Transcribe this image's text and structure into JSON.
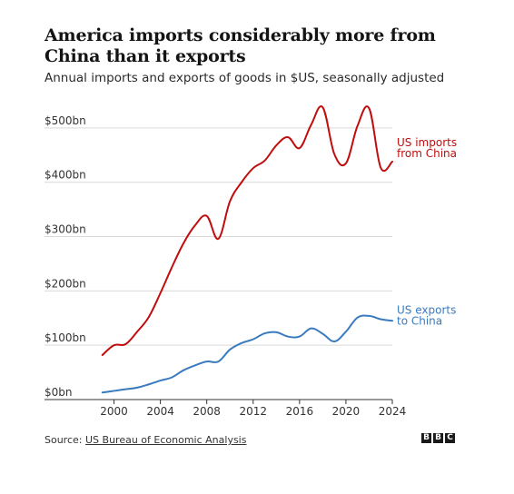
{
  "title": "America imports considerably more from China than it exports",
  "subtitle": "Annual imports and exports of goods in $US, seasonally adjusted",
  "source": {
    "label": "Source:",
    "text": "US Bureau of Economic Analysis"
  },
  "logo": [
    "B",
    "B",
    "C"
  ],
  "colors": {
    "imports": "#c00d0d",
    "exports": "#3a7bbf",
    "grid": "#d9d9d9",
    "axis": "#333333"
  },
  "chart_data": {
    "type": "line",
    "xlim": [
      1998,
      2024
    ],
    "ylim": [
      0,
      540
    ],
    "y_ticks": [
      {
        "value": 0,
        "label": "$0bn"
      },
      {
        "value": 100,
        "label": "$100bn"
      },
      {
        "value": 200,
        "label": "$200bn"
      },
      {
        "value": 300,
        "label": "$300bn"
      },
      {
        "value": 400,
        "label": "$400bn"
      },
      {
        "value": 500,
        "label": "$500bn"
      }
    ],
    "x_ticks": [
      {
        "value": 2000,
        "label": "2000"
      },
      {
        "value": 2004,
        "label": "2004"
      },
      {
        "value": 2008,
        "label": "2008"
      },
      {
        "value": 2012,
        "label": "2012"
      },
      {
        "value": 2016,
        "label": "2016"
      },
      {
        "value": 2020,
        "label": "2020"
      },
      {
        "value": 2024,
        "label": "2024"
      }
    ],
    "grid": true,
    "series": [
      {
        "name": "US imports from China",
        "label_lines": [
          "US imports",
          "from China"
        ],
        "color": "#c00d0d",
        "x": [
          1999,
          2000,
          2001,
          2002,
          2003,
          2004,
          2005,
          2006,
          2007,
          2008,
          2009,
          2010,
          2011,
          2012,
          2013,
          2014,
          2015,
          2016,
          2017,
          2018,
          2019,
          2020,
          2021,
          2022,
          2023,
          2024
        ],
        "values": [
          82,
          100,
          102,
          125,
          152,
          196,
          244,
          288,
          321,
          338,
          296,
          365,
          400,
          426,
          440,
          468,
          483,
          463,
          506,
          538,
          452,
          435,
          504,
          536,
          427,
          438
        ]
      },
      {
        "name": "US exports to China",
        "label_lines": [
          "US exports",
          "to China"
        ],
        "color": "#3a7bbf",
        "x": [
          1999,
          2000,
          2001,
          2002,
          2003,
          2004,
          2005,
          2006,
          2007,
          2008,
          2009,
          2010,
          2011,
          2012,
          2013,
          2014,
          2015,
          2016,
          2017,
          2018,
          2019,
          2020,
          2021,
          2022,
          2023,
          2024
        ],
        "values": [
          13,
          16,
          19,
          22,
          28,
          35,
          41,
          54,
          63,
          70,
          70,
          92,
          104,
          111,
          122,
          124,
          116,
          116,
          131,
          121,
          107,
          125,
          151,
          154,
          148,
          145
        ]
      }
    ]
  }
}
